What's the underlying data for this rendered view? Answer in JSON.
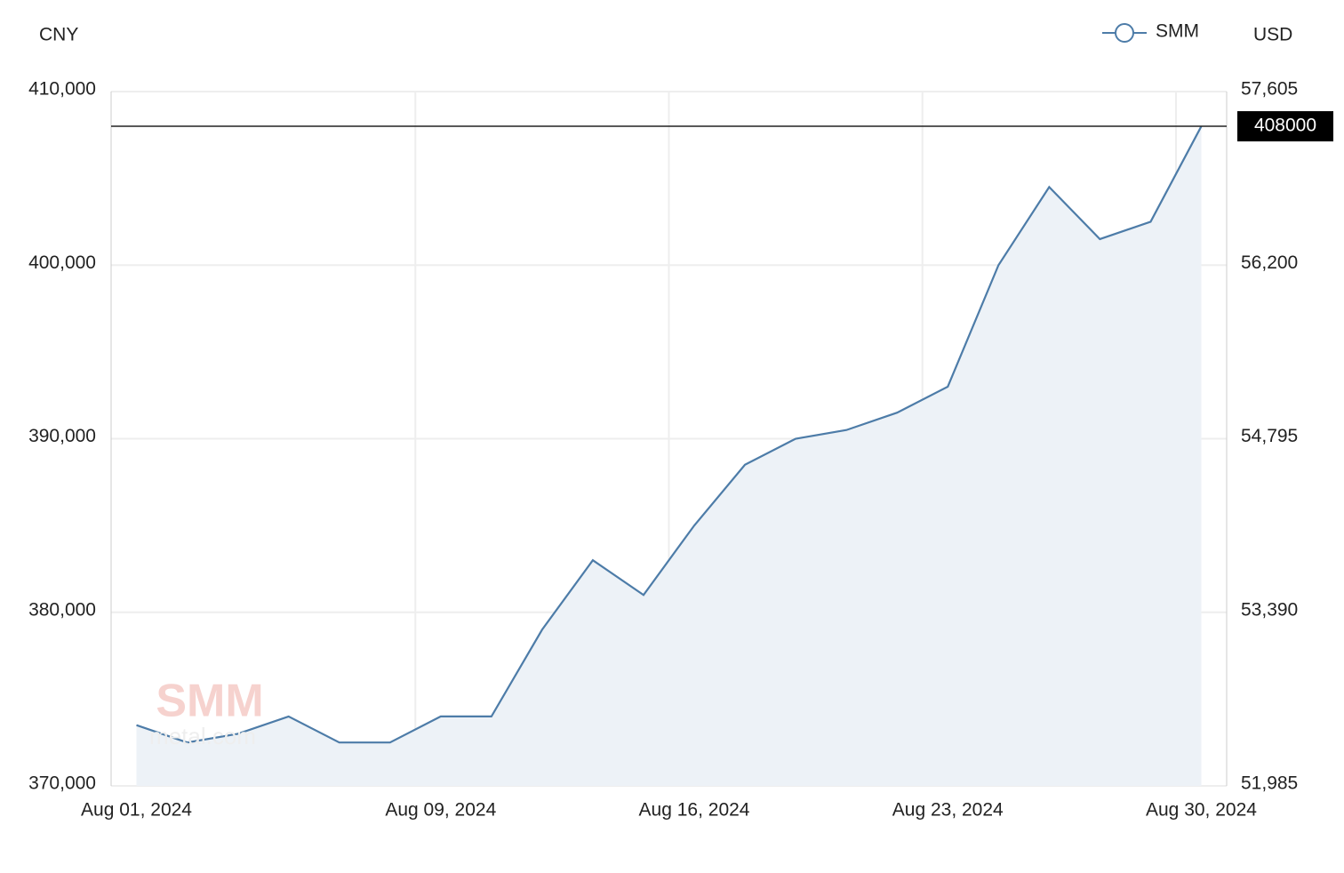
{
  "chart_data": {
    "type": "line",
    "y_axis_label": "CNY",
    "y2_axis_label": "USD",
    "watermark": {
      "logo": "SMM",
      "site": "metal.com"
    },
    "categories": [
      "Aug 01, 2024",
      null,
      null,
      null,
      null,
      null,
      "Aug 09, 2024",
      null,
      null,
      null,
      null,
      "Aug 16, 2024",
      null,
      null,
      null,
      null,
      "Aug 23, 2024",
      null,
      null,
      null,
      null,
      "Aug 30, 2024"
    ],
    "series": [
      {
        "name": "SMM",
        "color": "#4d7ca8",
        "fill": "#edf2f7",
        "values": [
          373500,
          372500,
          373000,
          374000,
          372500,
          372500,
          374000,
          374000,
          379000,
          383000,
          381000,
          385000,
          388500,
          390000,
          390500,
          391500,
          393000,
          400000,
          404500,
          401500,
          402500,
          408000
        ]
      }
    ],
    "ylim": [
      370000,
      410000
    ],
    "yticks": [
      {
        "value": 370000,
        "label": "370,000"
      },
      {
        "value": 380000,
        "label": "380,000"
      },
      {
        "value": 390000,
        "label": "390,000"
      },
      {
        "value": 400000,
        "label": "400,000"
      },
      {
        "value": 410000,
        "label": "410,000"
      }
    ],
    "y2lim": [
      51985,
      57605
    ],
    "y2ticks": [
      {
        "value": 51985,
        "label": "51,985"
      },
      {
        "value": 53390,
        "label": "53,390"
      },
      {
        "value": 54795,
        "label": "54,795"
      },
      {
        "value": 56200,
        "label": "56,200"
      },
      {
        "value": 57605,
        "label": "57,605"
      }
    ],
    "grid": true,
    "legend": "top-right"
  }
}
